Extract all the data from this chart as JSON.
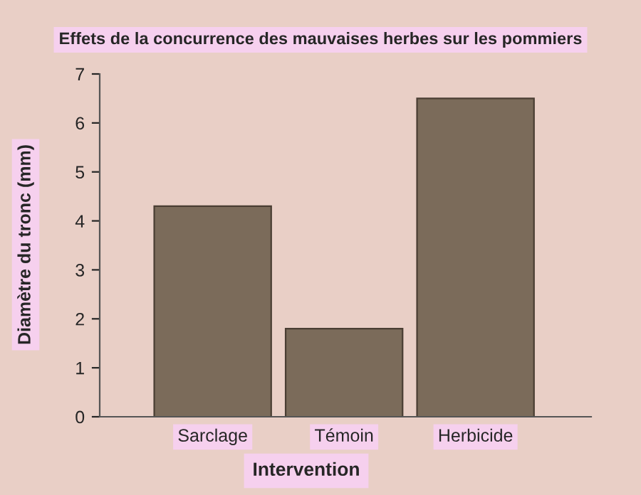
{
  "chart_data": {
    "type": "bar",
    "title": "Effets de la concurrence des mauvaises herbes sur les pommiers",
    "xlabel": "Intervention",
    "ylabel": "Diamètre du tronc (mm)",
    "categories": [
      "Sarclage",
      "Témoin",
      "Herbicide"
    ],
    "values": [
      4.3,
      1.8,
      6.5
    ],
    "color": "#7b6b5a",
    "ylim": [
      0,
      7
    ],
    "yticks": [
      0,
      1,
      2,
      3,
      4,
      5,
      6,
      7
    ],
    "grid": false,
    "legend": false
  }
}
